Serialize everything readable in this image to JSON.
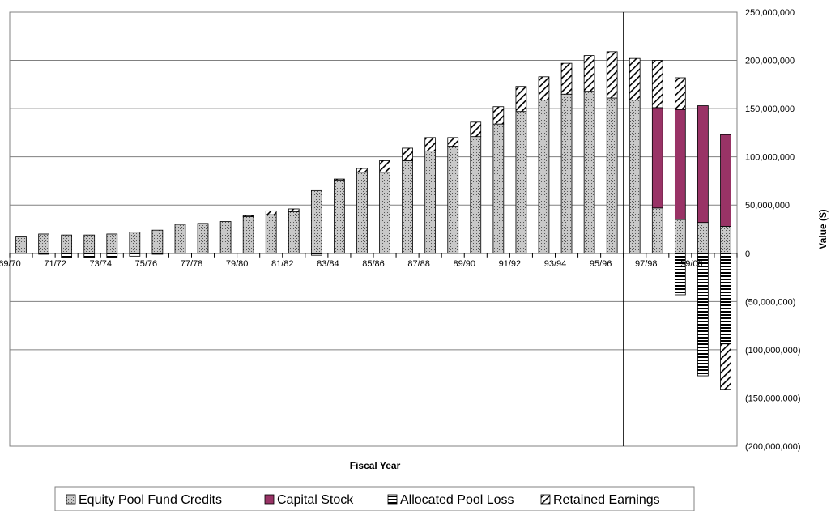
{
  "chart_data": {
    "type": "bar",
    "stacked": true,
    "title": "",
    "xlabel": "Fiscal Year",
    "ylabel": "Value ($)",
    "ylim": [
      -200000000,
      250000000
    ],
    "ytick_step": 50000000,
    "ytick_labels": [
      "250,000,000",
      "200,000,000",
      "150,000,000",
      "100,000,000",
      "50,000,000",
      "0",
      "(50,000,000)",
      "(100,000,000)",
      "(150,000,000)",
      "(200,000,000)"
    ],
    "grid": true,
    "legend_position": "bottom",
    "categories": [
      "69/70",
      "70/71",
      "71/72",
      "72/73",
      "73/74",
      "74/75",
      "75/76",
      "76/77",
      "77/78",
      "78/79",
      "79/80",
      "80/81",
      "81/82",
      "82/83",
      "83/84",
      "84/85",
      "85/86",
      "86/87",
      "87/88",
      "88/89",
      "89/90",
      "90/91",
      "91/92",
      "92/93",
      "93/94",
      "94/95",
      "95/96",
      "96/97",
      "97/98",
      "98/99",
      "99/00",
      "00/01"
    ],
    "x_tick_labels": [
      "69/70",
      "",
      "71/72",
      "",
      "73/74",
      "",
      "75/76",
      "",
      "77/78",
      "",
      "79/80",
      "",
      "81/82",
      "",
      "83/84",
      "",
      "85/86",
      "",
      "87/88",
      "",
      "89/90",
      "",
      "91/92",
      "",
      "93/94",
      "",
      "95/96",
      "",
      "97/98",
      "",
      "99/00",
      ""
    ],
    "vertical_marker_after": "95/96",
    "series": [
      {
        "name": "Equity Pool Fund Credits",
        "pattern": "dots",
        "color": "#c0c0c0",
        "values": [
          17000000,
          20000000,
          19000000,
          19000000,
          20000000,
          22000000,
          24000000,
          30000000,
          31000000,
          33000000,
          38000000,
          40000000,
          43000000,
          65000000,
          76000000,
          84000000,
          84000000,
          96000000,
          106000000,
          111000000,
          121000000,
          134000000,
          147000000,
          159000000,
          165000000,
          168000000,
          161000000,
          159000000,
          47000000,
          35000000,
          32000000,
          28000000
        ]
      },
      {
        "name": "Capital Stock",
        "pattern": "solid",
        "color": "#993366",
        "values": [
          0,
          0,
          0,
          0,
          0,
          0,
          0,
          0,
          0,
          0,
          0,
          0,
          0,
          0,
          0,
          0,
          0,
          0,
          0,
          0,
          0,
          0,
          0,
          0,
          0,
          0,
          0,
          0,
          104000000,
          114000000,
          121000000,
          95000000
        ]
      },
      {
        "name": "Allocated Pool Loss",
        "pattern": "horizontal",
        "color": "#ffffff",
        "values": [
          0,
          -1000000,
          -4000000,
          -4000000,
          -4000000,
          -3000000,
          -1000000,
          0,
          0,
          0,
          0,
          0,
          0,
          -2000000,
          0,
          0,
          0,
          0,
          0,
          0,
          0,
          0,
          0,
          0,
          0,
          0,
          0,
          0,
          0,
          -43000000,
          -127000000,
          -94000000
        ]
      },
      {
        "name": "Retained Earnings",
        "pattern": "diagonal",
        "color": "#ffffff",
        "values": [
          0,
          0,
          0,
          0,
          0,
          0,
          0,
          0,
          0,
          0,
          1000000,
          4000000,
          3000000,
          0,
          1000000,
          4000000,
          12000000,
          13000000,
          14000000,
          9000000,
          15000000,
          18000000,
          26000000,
          24000000,
          32000000,
          37000000,
          48000000,
          43000000,
          49000000,
          33000000,
          0,
          -47000000
        ]
      }
    ]
  }
}
